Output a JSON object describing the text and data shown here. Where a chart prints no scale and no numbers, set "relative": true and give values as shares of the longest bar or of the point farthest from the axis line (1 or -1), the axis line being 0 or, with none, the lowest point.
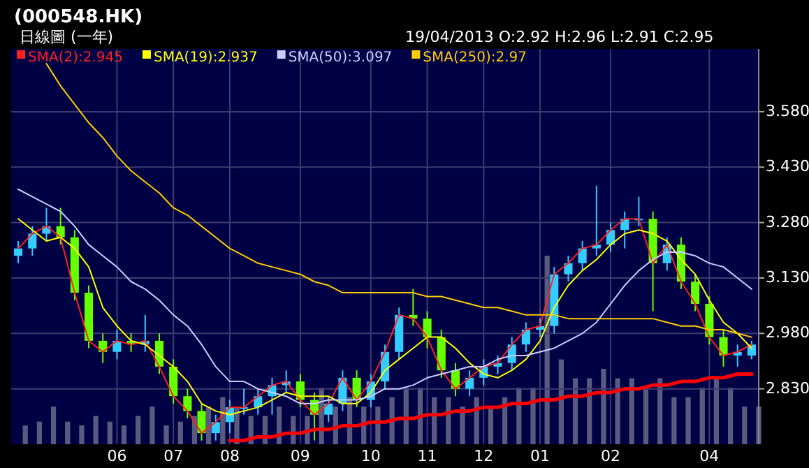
{
  "chart_data": [
    {
      "type": "candlestick",
      "title": "(000548.HK)",
      "subtitle": "日線圖 (一年)",
      "annotations": [
        "19/04/2013  O:2.92  H:2.96  L:2.91  C:2.95"
      ],
      "categories": [
        null,
        null,
        null,
        null,
        null,
        null,
        null,
        "06",
        null,
        null,
        null,
        "07",
        null,
        null,
        null,
        "08",
        null,
        null,
        null,
        null,
        "09",
        null,
        null,
        null,
        null,
        "10",
        null,
        null,
        null,
        "11",
        null,
        null,
        null,
        "12",
        null,
        null,
        null,
        "01",
        null,
        null,
        null,
        null,
        "02",
        null,
        null,
        null,
        null,
        null,
        null,
        "04",
        null,
        null,
        null
      ],
      "ohlc": [
        [
          3.19,
          3.23,
          3.17,
          3.21
        ],
        [
          3.21,
          3.27,
          3.19,
          3.25
        ],
        [
          3.25,
          3.32,
          3.23,
          3.27
        ],
        [
          3.27,
          3.32,
          3.22,
          3.24
        ],
        [
          3.24,
          3.26,
          3.07,
          3.09
        ],
        [
          3.09,
          3.11,
          2.94,
          2.96
        ],
        [
          2.96,
          2.98,
          2.9,
          2.93
        ],
        [
          2.93,
          2.99,
          2.91,
          2.96
        ],
        [
          2.96,
          2.98,
          2.93,
          2.95
        ],
        [
          2.95,
          3.03,
          2.93,
          2.96
        ],
        [
          2.96,
          2.98,
          2.87,
          2.89
        ],
        [
          2.89,
          2.91,
          2.79,
          2.81
        ],
        [
          2.81,
          2.83,
          2.75,
          2.77
        ],
        [
          2.77,
          2.79,
          2.69,
          2.71
        ],
        [
          2.71,
          2.76,
          2.69,
          2.74
        ],
        [
          2.74,
          2.8,
          2.71,
          2.78
        ],
        [
          2.78,
          2.83,
          2.76,
          2.78
        ],
        [
          2.78,
          2.83,
          2.76,
          2.81
        ],
        [
          2.81,
          2.86,
          2.76,
          2.84
        ],
        [
          2.84,
          2.88,
          2.82,
          2.85
        ],
        [
          2.85,
          2.87,
          2.78,
          2.8
        ],
        [
          2.8,
          2.82,
          2.69,
          2.76
        ],
        [
          2.76,
          2.81,
          2.74,
          2.79
        ],
        [
          2.79,
          2.88,
          2.77,
          2.86
        ],
        [
          2.86,
          2.88,
          2.78,
          2.8
        ],
        [
          2.8,
          2.87,
          2.78,
          2.85
        ],
        [
          2.85,
          2.95,
          2.83,
          2.93
        ],
        [
          2.93,
          3.05,
          2.91,
          3.03
        ],
        [
          3.03,
          3.1,
          3.0,
          3.02
        ],
        [
          3.02,
          3.04,
          2.94,
          2.97
        ],
        [
          2.97,
          2.99,
          2.86,
          2.88
        ],
        [
          2.88,
          2.9,
          2.81,
          2.83
        ],
        [
          2.83,
          2.88,
          2.81,
          2.86
        ],
        [
          2.86,
          2.91,
          2.84,
          2.89
        ],
        [
          2.89,
          2.92,
          2.87,
          2.9
        ],
        [
          2.9,
          2.97,
          2.88,
          2.95
        ],
        [
          2.95,
          3.01,
          2.93,
          2.99
        ],
        [
          2.99,
          3.02,
          2.97,
          3.0
        ],
        [
          3.0,
          3.16,
          2.98,
          3.14
        ],
        [
          3.14,
          3.19,
          3.12,
          3.17
        ],
        [
          3.17,
          3.23,
          3.15,
          3.21
        ],
        [
          3.21,
          3.38,
          3.19,
          3.22
        ],
        [
          3.22,
          3.28,
          3.2,
          3.26
        ],
        [
          3.26,
          3.31,
          3.21,
          3.29
        ],
        [
          3.29,
          3.35,
          3.27,
          3.29
        ],
        [
          3.29,
          3.31,
          3.04,
          3.17
        ],
        [
          3.17,
          3.24,
          3.15,
          3.22
        ],
        [
          3.22,
          3.24,
          3.1,
          3.12
        ],
        [
          3.12,
          3.14,
          3.04,
          3.06
        ],
        [
          3.06,
          3.08,
          2.95,
          2.97
        ],
        [
          2.97,
          2.99,
          2.89,
          2.92
        ],
        [
          2.92,
          2.95,
          2.89,
          2.93
        ],
        [
          2.92,
          2.96,
          2.91,
          2.95
        ]
      ],
      "colors": [
        "#33ccff",
        "#33ccff",
        "#33ccff",
        "#66ff00",
        "#66ff00",
        "#66ff00",
        "#66ff00",
        "#33ccff",
        "#66ff00",
        "#33ccff",
        "#66ff00",
        "#66ff00",
        "#66ff00",
        "#66ff00",
        "#33ccff",
        "#33ccff",
        "#33ccff",
        "#33ccff",
        "#33ccff",
        "#33ccff",
        "#66ff00",
        "#66ff00",
        "#33ccff",
        "#33ccff",
        "#66ff00",
        "#33ccff",
        "#33ccff",
        "#33ccff",
        "#66ff00",
        "#66ff00",
        "#66ff00",
        "#66ff00",
        "#33ccff",
        "#33ccff",
        "#33ccff",
        "#33ccff",
        "#33ccff",
        "#33ccff",
        "#33ccff",
        "#33ccff",
        "#33ccff",
        "#33ccff",
        "#33ccff",
        "#33ccff",
        "#33ccff",
        "#66ff00",
        "#33ccff",
        "#66ff00",
        "#66ff00",
        "#66ff00",
        "#66ff00",
        "#33ccff",
        "#33ccff"
      ],
      "series": [
        {
          "type": "line",
          "name": "SMA(2):2.945",
          "color": "#ff2020",
          "values": [
            3.21,
            3.25,
            3.27,
            3.24,
            3.09,
            2.96,
            2.93,
            2.96,
            2.95,
            2.96,
            2.89,
            2.81,
            2.77,
            2.71,
            2.74,
            2.78,
            2.78,
            2.81,
            2.84,
            2.85,
            2.8,
            2.76,
            2.79,
            2.86,
            2.8,
            2.85,
            2.93,
            3.03,
            3.02,
            2.97,
            2.88,
            2.83,
            2.86,
            2.89,
            2.9,
            2.95,
            2.99,
            3.0,
            3.14,
            3.17,
            3.21,
            3.22,
            3.26,
            3.29,
            3.29,
            3.17,
            3.22,
            3.12,
            3.06,
            2.97,
            2.92,
            2.93,
            2.95
          ]
        },
        {
          "type": "line",
          "name": "SMA(19):2.937",
          "color": "#ffff00",
          "values": [
            3.29,
            3.26,
            3.23,
            3.24,
            3.21,
            3.16,
            3.05,
            3.0,
            2.96,
            2.95,
            2.92,
            2.89,
            2.85,
            2.79,
            2.77,
            2.76,
            2.77,
            2.78,
            2.8,
            2.82,
            2.81,
            2.81,
            2.81,
            2.79,
            2.79,
            2.82,
            2.88,
            2.91,
            2.94,
            2.97,
            2.97,
            2.94,
            2.9,
            2.87,
            2.86,
            2.88,
            2.91,
            2.96,
            3.05,
            3.11,
            3.15,
            3.18,
            3.22,
            3.25,
            3.26,
            3.25,
            3.23,
            3.18,
            3.14,
            3.07,
            3.01,
            2.98,
            2.94
          ]
        },
        {
          "type": "line",
          "name": "SMA(50):3.097",
          "color": "#ccccff",
          "values": [
            3.37,
            3.35,
            3.33,
            3.31,
            3.27,
            3.22,
            3.19,
            3.16,
            3.12,
            3.1,
            3.07,
            3.03,
            3.0,
            2.95,
            2.89,
            2.85,
            2.85,
            2.83,
            2.82,
            2.81,
            2.79,
            2.79,
            2.8,
            2.8,
            2.8,
            2.81,
            2.83,
            2.83,
            2.84,
            2.86,
            2.87,
            2.88,
            2.89,
            2.89,
            2.91,
            2.92,
            2.92,
            2.93,
            2.94,
            2.96,
            2.98,
            3.01,
            3.06,
            3.11,
            3.15,
            3.18,
            3.2,
            3.2,
            3.19,
            3.17,
            3.16,
            3.13,
            3.1
          ]
        },
        {
          "type": "line",
          "name": "SMA(250):2.97",
          "color": "#ffcc00",
          "values": [
            null,
            null,
            3.71,
            3.65,
            3.6,
            3.55,
            3.51,
            3.46,
            3.42,
            3.39,
            3.36,
            3.32,
            3.3,
            3.27,
            3.24,
            3.21,
            3.19,
            3.17,
            3.16,
            3.15,
            3.14,
            3.12,
            3.11,
            3.09,
            3.09,
            3.09,
            3.09,
            3.09,
            3.09,
            3.08,
            3.08,
            3.07,
            3.06,
            3.05,
            3.05,
            3.04,
            3.03,
            3.03,
            3.03,
            3.02,
            3.02,
            3.02,
            3.02,
            3.02,
            3.02,
            3.02,
            3.01,
            3.0,
            3.0,
            2.99,
            2.99,
            2.98,
            2.97
          ]
        },
        {
          "type": "line",
          "color": "#ff0000",
          "values": [
            null,
            null,
            null,
            null,
            null,
            null,
            null,
            null,
            null,
            null,
            null,
            null,
            null,
            null,
            null,
            2.69,
            2.69,
            2.7,
            2.7,
            2.71,
            2.71,
            2.72,
            2.72,
            2.73,
            2.73,
            2.74,
            2.74,
            2.75,
            2.75,
            2.76,
            2.76,
            2.77,
            2.77,
            2.78,
            2.78,
            2.79,
            2.79,
            2.8,
            2.8,
            2.81,
            2.81,
            2.82,
            2.82,
            2.83,
            2.83,
            2.84,
            2.84,
            2.85,
            2.85,
            2.86,
            2.86,
            2.87,
            2.87
          ]
        }
      ],
      "ylim": [
        2.68,
        3.75
      ],
      "yticks": [
        {
          "value": 2.83,
          "label": "2.830"
        },
        {
          "value": 2.98,
          "label": "2.980"
        },
        {
          "value": 3.13,
          "label": "3.130"
        },
        {
          "value": 3.28,
          "label": "3.280"
        },
        {
          "value": 3.43,
          "label": "3.430"
        },
        {
          "value": 3.58,
          "label": "3.580"
        }
      ],
      "grid": true,
      "legend": "top left"
    },
    {
      "type": "bar",
      "relative": true,
      "color": "#5a5a80",
      "categories": [
        null,
        null,
        null,
        null,
        null,
        null,
        null,
        null,
        null,
        null,
        null,
        null,
        null,
        null,
        null,
        null,
        null,
        null,
        null,
        null,
        null,
        null,
        null,
        null,
        null,
        null,
        null,
        null,
        null,
        null,
        null,
        null,
        null,
        null,
        null,
        null,
        null,
        null,
        null,
        null,
        null,
        null,
        null,
        null,
        null,
        null,
        null,
        null,
        null,
        null,
        null,
        null,
        null
      ],
      "values": [
        0.1,
        0.12,
        0.2,
        0.12,
        0.1,
        0.15,
        0.12,
        0.1,
        0.15,
        0.2,
        0.1,
        0.12,
        0.15,
        0.2,
        0.25,
        0.2,
        0.15,
        0.15,
        0.2,
        0.15,
        0.15,
        0.3,
        0.2,
        0.25,
        0.2,
        0.2,
        0.25,
        0.3,
        0.3,
        0.25,
        0.25,
        0.2,
        0.25,
        0.2,
        0.25,
        0.3,
        0.3,
        1.0,
        0.45,
        0.35,
        0.35,
        0.4,
        0.35,
        0.35,
        0.3,
        0.35,
        0.25,
        0.25,
        0.3,
        0.35,
        0.3,
        0.2,
        0.2
      ]
    }
  ]
}
